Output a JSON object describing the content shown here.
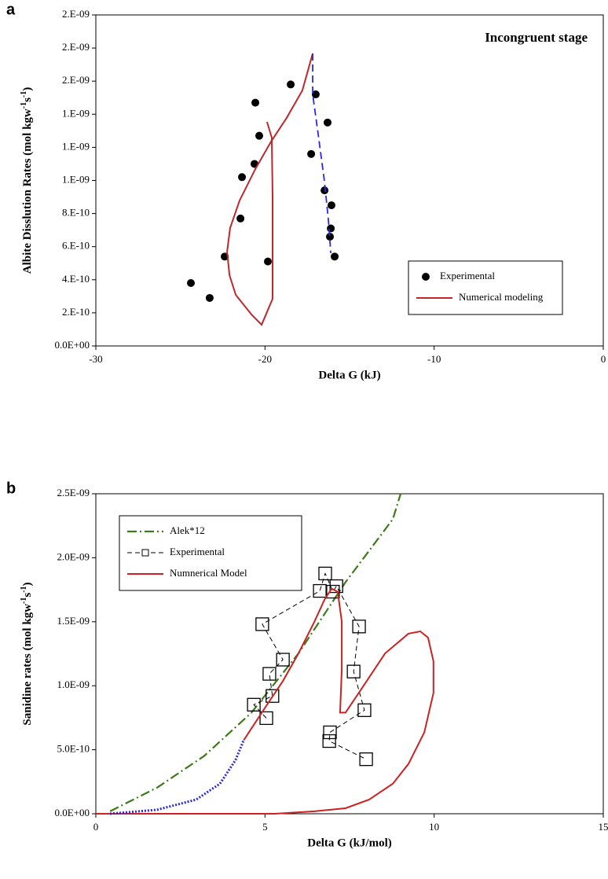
{
  "chart_data": [
    {
      "type": "line",
      "panel": "a",
      "annotation": "Incongruent stage",
      "xlabel": "Delta G (kJ)",
      "ylabel": [
        "Albite Disslution Rates (mol kgw",
        "-1",
        "s",
        "-1",
        ")"
      ],
      "xlim": [
        -30,
        0
      ],
      "xticks": [
        -30,
        -20,
        -10,
        0
      ],
      "ylim": [
        0,
        2e-09
      ],
      "yticks": [
        {
          "value": 0,
          "label": "0.0E+00"
        },
        {
          "value": 2e-10,
          "label": "2.E-10"
        },
        {
          "value": 4e-10,
          "label": "4.E-10"
        },
        {
          "value": 6e-10,
          "label": "6.E-10"
        },
        {
          "value": 8e-10,
          "label": "8.E-10"
        },
        {
          "value": 1e-09,
          "label": "1.E-09"
        },
        {
          "value": 1.2e-09,
          "label": "1.E-09"
        },
        {
          "value": 1.4e-09,
          "label": "1.E-09"
        },
        {
          "value": 1.6e-09,
          "label": "2.E-09"
        },
        {
          "value": 1.8e-09,
          "label": "2.E-09"
        },
        {
          "value": 2e-09,
          "label": "2.E-09"
        }
      ],
      "legend": "lower right",
      "series": [
        {
          "name": "Experimental",
          "color": "#000000",
          "mode": "markers",
          "marker": "circle",
          "x": [
            -24.38,
            -23.27,
            -22.38,
            -21.45,
            -21.36,
            -19.83,
            -20.62,
            -20.34,
            -20.57,
            -18.48,
            -17.0,
            -17.27,
            -16.3,
            -16.48,
            -16.07,
            -16.11,
            -16.16,
            -15.88
          ],
          "values": [
            3.8e-10,
            2.9e-10,
            5.4e-10,
            7.7e-10,
            1.02e-09,
            5.1e-10,
            1.1e-09,
            1.27e-09,
            1.47e-09,
            1.58e-09,
            1.52e-09,
            1.16e-09,
            1.35e-09,
            9.4e-10,
            8.5e-10,
            7.1e-10,
            6.6e-10,
            5.4e-10
          ]
        },
        {
          "name": "Numerical modeling",
          "color": "#c0272d",
          "mode": "lines",
          "dash": "solid",
          "x": [
            -19.88,
            -19.6,
            -19.55,
            -19.55,
            -20.2,
            -20.8,
            -21.73,
            -22.1,
            -22.24,
            -22.06,
            -21.5,
            -20.57,
            -19.64,
            -18.72,
            -17.79,
            -17.18
          ],
          "values": [
            1.354e-09,
            1.259e-09,
            9.03e-10,
            2.85e-10,
            1.28e-10,
            1.9e-10,
            3.09e-10,
            4.28e-10,
            5.7e-10,
            7.13e-10,
            8.79e-10,
            1.069e-09,
            1.235e-09,
            1.378e-09,
            1.544e-09,
            1.767e-09
          ]
        },
        {
          "color": "#2a2adf",
          "mode": "lines",
          "dash": "dashed",
          "x": [
            -17.18,
            -17.18,
            -16.86,
            -16.49,
            -16.25,
            -16.11
          ],
          "values": [
            1.767e-09,
            1.52e-09,
            1.283e-09,
            9.98e-10,
            7.6e-10,
            5.61e-10
          ]
        }
      ]
    },
    {
      "type": "line",
      "panel": "b",
      "xlabel": "Delta G (kJ/mol)",
      "ylabel": [
        "Sanidine rates (mol kgw",
        "-1",
        "s",
        "-1",
        ")"
      ],
      "xlim": [
        0,
        15
      ],
      "xticks": [
        0,
        5,
        10,
        15
      ],
      "ylim": [
        0,
        2.5e-09
      ],
      "yticks": [
        {
          "value": 0,
          "label": "0.0E+00"
        },
        {
          "value": 5e-10,
          "label": "5.0E-10"
        },
        {
          "value": 1e-09,
          "label": "1.0E-09"
        },
        {
          "value": 1.5e-09,
          "label": "1.5E-09"
        },
        {
          "value": 2e-09,
          "label": "2.0E-09"
        },
        {
          "value": 2.5e-09,
          "label": "2.5E-09"
        }
      ],
      "legend": "upper left",
      "series": [
        {
          "name": "Alek*12",
          "color": "#3d7a1a",
          "mode": "lines",
          "dash": "dashdot",
          "x": [
            0.42,
            1.81,
            3.2,
            4.6,
            5.99,
            7.38,
            8.78,
            9.01
          ],
          "values": [
            1.9e-11,
            2.04e-10,
            4.51e-10,
            7.9e-10,
            1.253e-09,
            1.809e-09,
            2.302e-09,
            2.5e-09
          ]
        },
        {
          "name": "Experimental",
          "color": "#000000",
          "mode": "lines+markers",
          "marker": "square",
          "dash": "dashed",
          "x": [
            5.04,
            4.67,
            5.22,
            5.13,
            5.53,
            4.92,
            6.62,
            6.78,
            7.01,
            7.11,
            7.78,
            7.62,
            7.94,
            6.92,
            6.9,
            7.99
          ],
          "values": [
            7.47e-10,
            8.52e-10,
            9.2e-10,
            1.093e-09,
            1.204e-09,
            1.481e-09,
            1.741e-09,
            1.877e-09,
            1.735e-09,
            1.778e-09,
            1.463e-09,
            1.111e-09,
            8.09e-10,
            6.36e-10,
            5.68e-10,
            4.26e-10
          ]
        },
        {
          "name": "Numnerical Model",
          "color": "#cc2222",
          "mode": "lines",
          "dash": "solid",
          "x": [
            4.37,
            5.06,
            5.53,
            5.99,
            6.46,
            6.76,
            6.97,
            7.15,
            7.27,
            7.27,
            7.22,
            7.38,
            7.85,
            8.55,
            9.24,
            9.59,
            9.82,
            9.98,
            9.98,
            9.71,
            9.24,
            8.78,
            8.08,
            7.38,
            6.46,
            5.29,
            0
          ],
          "values": [
            5.74e-10,
            8.52e-10,
            1.037e-09,
            1.253e-09,
            1.5e-09,
            1.673e-09,
            1.759e-09,
            1.734e-09,
            1.5e-09,
            1.13e-09,
            7.9e-10,
            7.9e-10,
            9.75e-10,
            1.253e-09,
            1.407e-09,
            1.425e-09,
            1.376e-09,
            1.191e-09,
            9.44e-10,
            6.36e-10,
            3.89e-10,
            2.35e-10,
            1.11e-10,
            4.3e-11,
            1.9e-11,
            0,
            0
          ]
        },
        {
          "color": "#2a2adf",
          "mode": "lines",
          "dash": "dotted",
          "x": [
            0.42,
            1.81,
            2.97,
            3.67,
            4.13,
            4.37
          ],
          "values": [
            0,
            3.1e-11,
            1.11e-10,
            2.35e-10,
            4.2e-10,
            5.74e-10
          ]
        }
      ]
    }
  ]
}
